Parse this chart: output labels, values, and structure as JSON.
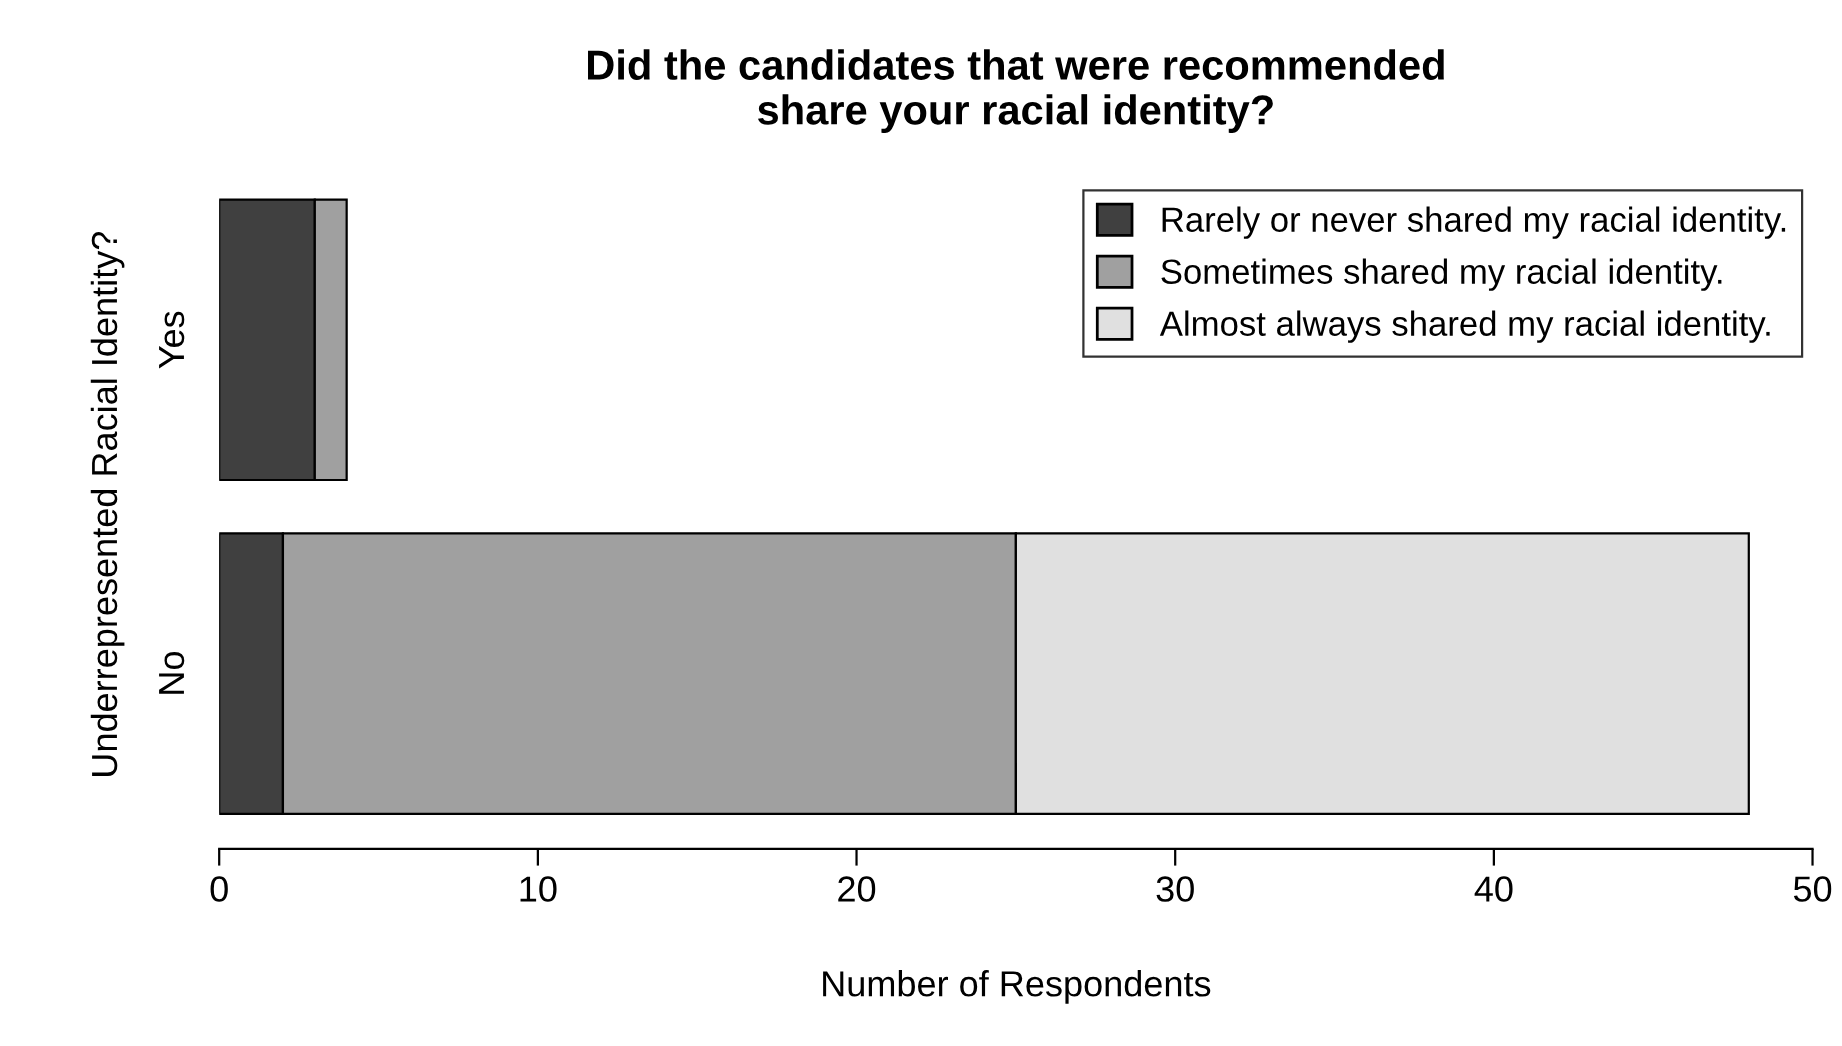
{
  "chart_data": {
    "type": "bar",
    "orientation": "horizontal",
    "stacked": true,
    "title": "Did the candidates that were recommended\nshare your racial identity?",
    "xlabel": "Number of Respondents",
    "ylabel": "Underrepresented Racial Identity?",
    "categories": [
      "Yes",
      "No"
    ],
    "series": [
      {
        "name": "Rarely or never shared my racial identity.",
        "color": "#404040",
        "values": [
          3,
          2
        ]
      },
      {
        "name": "Sometimes shared my racial identity.",
        "color": "#a0a0a0",
        "values": [
          1,
          23
        ]
      },
      {
        "name": "Almost always shared my racial identity.",
        "color": "#e0e0e0",
        "values": [
          null,
          23
        ]
      }
    ],
    "xlim": [
      0,
      50
    ],
    "xticks": [
      0,
      10,
      20,
      30,
      40,
      50
    ],
    "grid": false,
    "legend": "top right"
  }
}
